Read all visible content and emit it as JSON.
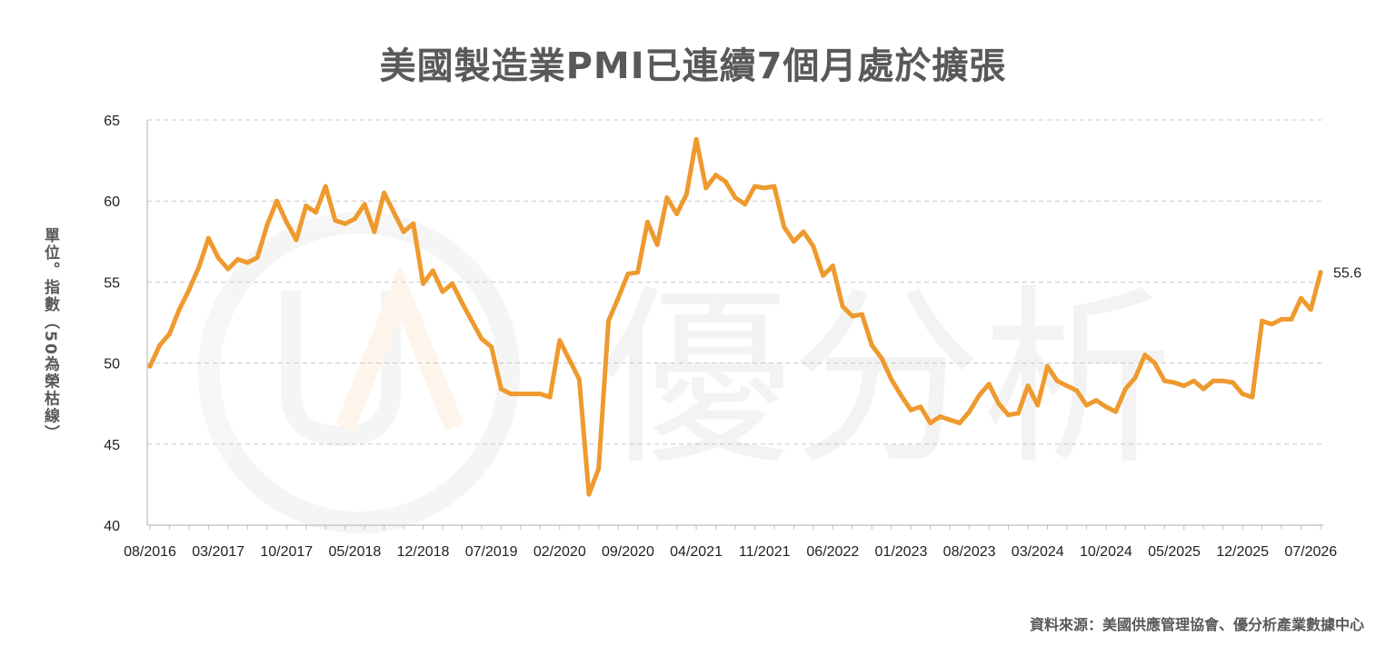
{
  "title": "美國製造業PMI已連續7個月處於擴張",
  "ylabel": "單位。指數（50為榮枯線）",
  "source": "資料來源：美國供應管理協會、優分析產業數據中心",
  "watermark_text": "優分析",
  "chart_data": {
    "type": "line",
    "title": "美國製造業PMI已連續7個月處於擴張",
    "ylabel": "單位。指數（50為榮枯線）",
    "ylim": [
      40,
      65
    ],
    "yticks": [
      40,
      45,
      50,
      55,
      60,
      65
    ],
    "grid": true,
    "line_color": "#EE9A2E",
    "xtick_labels": [
      "08/2016",
      "03/2017",
      "10/2017",
      "05/2018",
      "12/2018",
      "07/2019",
      "02/2020",
      "09/2020",
      "04/2021",
      "11/2021",
      "06/2022",
      "01/2023",
      "08/2023",
      "03/2024",
      "10/2024",
      "05/2025",
      "12/2025",
      "07/2026"
    ],
    "last_value_label": "55.6",
    "values": [
      49.8,
      51.1,
      51.8,
      53.3,
      54.5,
      55.9,
      57.7,
      56.5,
      55.8,
      56.4,
      56.2,
      56.5,
      58.5,
      60.0,
      58.7,
      57.6,
      59.7,
      59.3,
      60.9,
      58.8,
      58.6,
      58.9,
      59.8,
      58.1,
      60.5,
      59.3,
      58.1,
      58.6,
      54.9,
      55.7,
      54.4,
      54.9,
      53.7,
      52.6,
      51.5,
      51.0,
      48.4,
      48.1,
      48.1,
      48.1,
      48.1,
      47.9,
      51.4,
      50.2,
      49.0,
      41.9,
      43.5,
      52.6,
      54.0,
      55.5,
      55.6,
      58.7,
      57.3,
      60.2,
      59.2,
      60.4,
      63.8,
      60.8,
      61.6,
      61.2,
      60.2,
      59.8,
      60.9,
      60.8,
      60.9,
      58.4,
      57.5,
      58.1,
      57.2,
      55.4,
      56.0,
      53.5,
      52.9,
      53.0,
      51.1,
      50.3,
      49.0,
      48.0,
      47.1,
      47.3,
      46.3,
      46.7,
      46.5,
      46.3,
      47.0,
      48.0,
      48.7,
      47.5,
      46.8,
      46.9,
      48.6,
      47.4,
      49.8,
      48.9,
      48.6,
      48.3,
      47.4,
      47.7,
      47.3,
      47.0,
      48.4,
      49.1,
      50.5,
      50.0,
      48.9,
      48.8,
      48.6,
      48.9,
      48.4,
      48.9,
      48.9,
      48.8,
      48.1,
      47.9,
      52.6,
      52.4,
      52.7,
      52.7,
      54.0,
      53.3,
      55.6
    ]
  }
}
